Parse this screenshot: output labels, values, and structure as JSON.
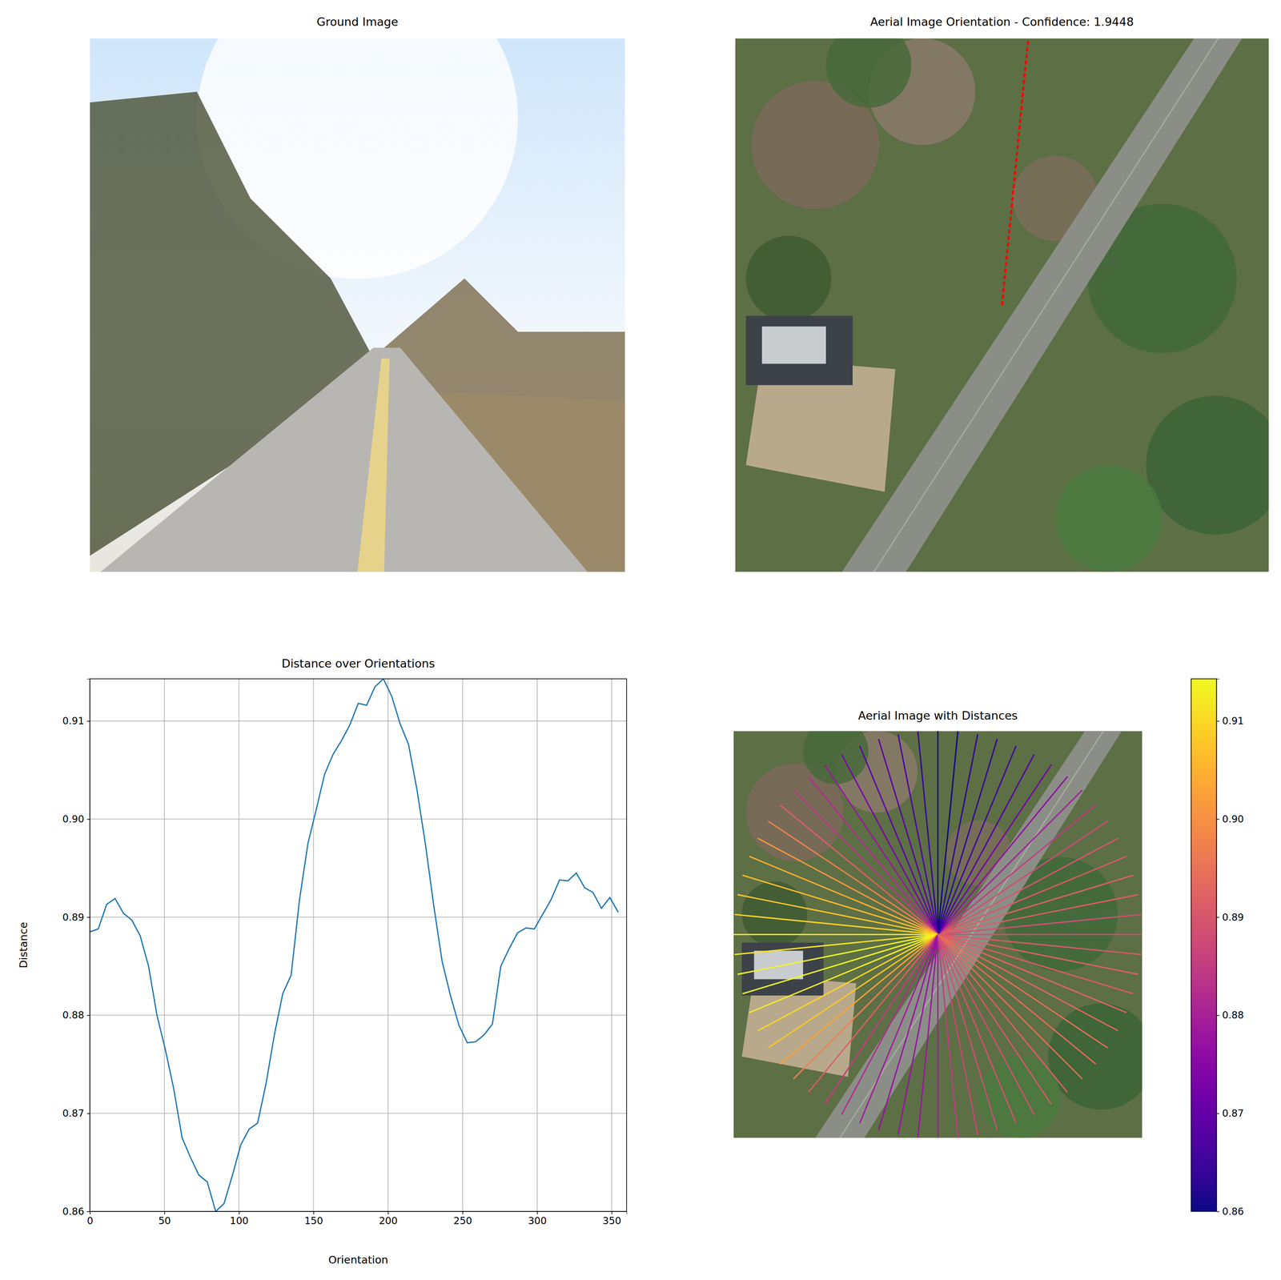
{
  "chart_data": [
    {
      "type": "image",
      "title": "Ground Image"
    },
    {
      "type": "image",
      "title": "Aerial Image Orientation - Confidence: 1.9448"
    },
    {
      "type": "line",
      "title": "Distance over Orientations",
      "x_label": "Orientation",
      "y_label": "Distance",
      "x": [
        0,
        5.625,
        11.25,
        16.875,
        22.5,
        28.125,
        33.75,
        39.375,
        45,
        50.625,
        56.25,
        61.875,
        67.5,
        73.125,
        78.75,
        84.375,
        90,
        95.625,
        101.25,
        106.875,
        112.5,
        118.125,
        123.75,
        129.375,
        135,
        140.625,
        146.25,
        151.875,
        157.5,
        163.125,
        168.75,
        174.375,
        180,
        185.625,
        191.25,
        196.875,
        202.5,
        208.125,
        213.75,
        219.375,
        225,
        230.625,
        236.25,
        241.875,
        247.5,
        253.125,
        258.75,
        264.375,
        270,
        275.625,
        281.25,
        286.875,
        292.5,
        298.125,
        303.75,
        309.375,
        315,
        320.625,
        326.25,
        331.875,
        337.5,
        343.125,
        348.75,
        354.375
      ],
      "values": [
        0.8885,
        0.8888,
        0.8913,
        0.8919,
        0.8904,
        0.8897,
        0.8881,
        0.885,
        0.88,
        0.8765,
        0.8725,
        0.8675,
        0.8655,
        0.8637,
        0.863,
        0.86,
        0.8608,
        0.8637,
        0.8668,
        0.8684,
        0.869,
        0.873,
        0.878,
        0.8822,
        0.8841,
        0.8918,
        0.8975,
        0.901,
        0.9046,
        0.9066,
        0.908,
        0.9096,
        0.9118,
        0.9116,
        0.9135,
        0.9143,
        0.9125,
        0.9097,
        0.9076,
        0.903,
        0.8975,
        0.8912,
        0.8855,
        0.882,
        0.879,
        0.8772,
        0.8773,
        0.878,
        0.8791,
        0.885,
        0.8868,
        0.8884,
        0.8889,
        0.8888,
        0.8903,
        0.8918,
        0.8938,
        0.8937,
        0.8945,
        0.893,
        0.8925,
        0.8909,
        0.892,
        0.8905
      ],
      "color": "#1f77b4",
      "xlim": [
        0,
        360
      ],
      "ylim": [
        0.86,
        0.9143
      ],
      "xticks": [
        0,
        50,
        100,
        150,
        200,
        250,
        300,
        350
      ],
      "yticks": [
        0.86,
        0.87,
        0.88,
        0.89,
        {
          "value": 0.9,
          "label": "0.90"
        },
        0.91
      ],
      "grid": true
    },
    {
      "type": "radial",
      "title": "Aerial Image with Distances",
      "colorbar_range": [
        0.86,
        0.9143
      ],
      "colorbar_ticks": [
        0.86,
        0.87,
        0.88,
        0.89,
        {
          "value": 0.9,
          "label": "0.90"
        },
        0.91
      ]
    }
  ]
}
